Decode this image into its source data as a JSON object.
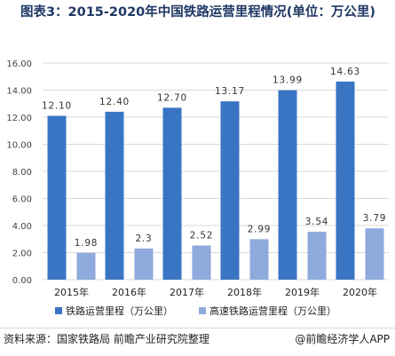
{
  "title": "图表3：2015-2020年中国铁路运营里程情况(单位：万公里)",
  "source": "资料来源：国家铁路局 前瞻产业研究院整理",
  "credit": "@前瞻经济学人APP",
  "colors": {
    "series1": "#3a75c4",
    "series2": "#8faadc",
    "grid": "#d9d9d9",
    "axis_text": "#444444",
    "title": "#1f3864"
  },
  "chart_data": {
    "type": "bar",
    "categories": [
      "2015年",
      "2016年",
      "2017年",
      "2018年",
      "2019年",
      "2020年"
    ],
    "series": [
      {
        "name": "铁路运营里程（万公里）",
        "values": [
          12.1,
          12.4,
          12.7,
          13.17,
          13.99,
          14.63
        ],
        "labels": [
          "12.10",
          "12.40",
          "12.70",
          "13.17",
          "13.99",
          "14.63"
        ]
      },
      {
        "name": "高速铁路运营里程（万公里）",
        "values": [
          1.98,
          2.3,
          2.52,
          2.99,
          3.54,
          3.79
        ],
        "labels": [
          "1.98",
          "2.3",
          "2.52",
          "2.99",
          "3.54",
          "3.79"
        ]
      }
    ],
    "yticks": [
      "0.00",
      "2.00",
      "4.00",
      "6.00",
      "8.00",
      "10.00",
      "12.00",
      "14.00",
      "16.00"
    ],
    "ylim": [
      0,
      16
    ],
    "grid": true,
    "legend": "bottom"
  }
}
